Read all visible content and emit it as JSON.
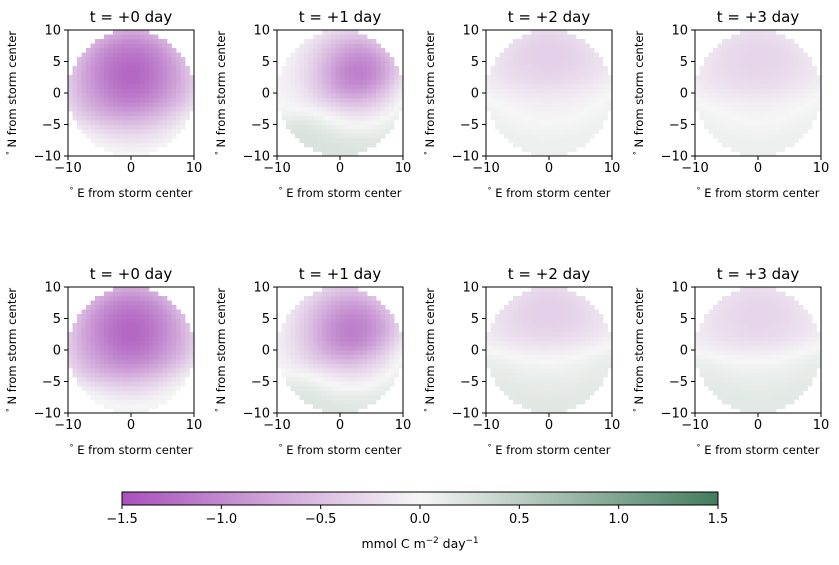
{
  "chart_data": [
    {
      "type": "heatmap",
      "title": "t = +0 day",
      "xlabel": "$^\\circ$ E from storm center",
      "ylabel": "$^\\circ$ N from storm center",
      "xlim": [
        -10,
        10
      ],
      "ylim": [
        -10,
        10
      ],
      "xticks": [
        "−10",
        "0",
        "10"
      ],
      "yticks": [
        "10",
        "5",
        "0",
        "−5",
        "−10"
      ],
      "field": {
        "center": [
          0,
          3
        ],
        "radius": 7,
        "peak": -1.3,
        "south_value": 0.25,
        "boundary_lat": -3.5,
        "tilt": 0.15
      }
    },
    {
      "type": "heatmap",
      "title": "t = +1 day",
      "xlabel": "$^\\circ$ E from storm center",
      "ylabel": "$^\\circ$ N from storm center",
      "xlim": [
        -10,
        10
      ],
      "ylim": [
        -10,
        10
      ],
      "xticks": [
        "−10",
        "0",
        "10"
      ],
      "yticks": [
        "10",
        "5",
        "0",
        "−5",
        "−10"
      ],
      "field": {
        "center": [
          3,
          3
        ],
        "radius": 5,
        "peak": -1.1,
        "south_value": 0.3,
        "boundary_lat": -1,
        "tilt": 0.35
      }
    },
    {
      "type": "heatmap",
      "title": "t = +2 day",
      "xlabel": "$^\\circ$ E from storm center",
      "ylabel": "$^\\circ$ N from storm center",
      "xlim": [
        -10,
        10
      ],
      "ylim": [
        -10,
        10
      ],
      "xticks": [
        "−10",
        "0",
        "10"
      ],
      "yticks": [
        "10",
        "5",
        "0",
        "−5",
        "−10"
      ],
      "field": {
        "center": [
          0,
          6
        ],
        "radius": 8,
        "peak": -0.35,
        "south_value": 0.15,
        "boundary_lat": 1,
        "tilt": 0.05
      }
    },
    {
      "type": "heatmap",
      "title": "t = +3 day",
      "xlabel": "$^\\circ$ E from storm center",
      "ylabel": "$^\\circ$ N from storm center",
      "xlim": [
        -10,
        10
      ],
      "ylim": [
        -10,
        10
      ],
      "xticks": [
        "−10",
        "0",
        "10"
      ],
      "yticks": [
        "10",
        "5",
        "0",
        "−5",
        "−10"
      ],
      "field": {
        "center": [
          0,
          5
        ],
        "radius": 8,
        "peak": -0.3,
        "south_value": 0.15,
        "boundary_lat": 0,
        "tilt": 0.05
      }
    },
    {
      "type": "heatmap",
      "title": "t = +0 day",
      "xlabel": "$^\\circ$ E from storm center",
      "ylabel": "$^\\circ$ N from storm center",
      "xlim": [
        -10,
        10
      ],
      "ylim": [
        -10,
        10
      ],
      "xticks": [
        "−10",
        "0",
        "10"
      ],
      "yticks": [
        "10",
        "5",
        "0",
        "−5",
        "−10"
      ],
      "field": {
        "center": [
          0,
          3
        ],
        "radius": 7,
        "peak": -1.3,
        "south_value": 0.3,
        "boundary_lat": -4,
        "tilt": 0.15
      }
    },
    {
      "type": "heatmap",
      "title": "t = +1 day",
      "xlabel": "$^\\circ$ E from storm center",
      "ylabel": "$^\\circ$ N from storm center",
      "xlim": [
        -10,
        10
      ],
      "ylim": [
        -10,
        10
      ],
      "xticks": [
        "−10",
        "0",
        "10"
      ],
      "yticks": [
        "10",
        "5",
        "0",
        "−5",
        "−10"
      ],
      "field": {
        "center": [
          2,
          3
        ],
        "radius": 5.5,
        "peak": -1.1,
        "south_value": 0.3,
        "boundary_lat": -1.5,
        "tilt": 0.35
      }
    },
    {
      "type": "heatmap",
      "title": "t = +2 day",
      "xlabel": "$^\\circ$ E from storm center",
      "ylabel": "$^\\circ$ N from storm center",
      "xlim": [
        -10,
        10
      ],
      "ylim": [
        -10,
        10
      ],
      "xticks": [
        "−10",
        "0",
        "10"
      ],
      "yticks": [
        "10",
        "5",
        "0",
        "−5",
        "−10"
      ],
      "field": {
        "center": [
          0,
          6
        ],
        "radius": 8,
        "peak": -0.35,
        "south_value": 0.25,
        "boundary_lat": 0.5,
        "tilt": 0.05
      }
    },
    {
      "type": "heatmap",
      "title": "t = +3 day",
      "xlabel": "$^\\circ$ E from storm center",
      "ylabel": "$^\\circ$ N from storm center",
      "xlim": [
        -10,
        10
      ],
      "ylim": [
        -10,
        10
      ],
      "xticks": [
        "−10",
        "0",
        "10"
      ],
      "yticks": [
        "10",
        "5",
        "0",
        "−5",
        "−10"
      ],
      "field": {
        "center": [
          0,
          5
        ],
        "radius": 8,
        "peak": -0.3,
        "south_value": 0.25,
        "boundary_lat": 0,
        "tilt": 0.05
      }
    }
  ],
  "colorbar": {
    "label": "mmol C m$^{-2}$ day$^{-1}$",
    "range": [
      -1.5,
      1.5
    ],
    "ticks": [
      "−1.5",
      "−1.0",
      "−0.5",
      "0.0",
      "0.5",
      "1.0",
      "1.5"
    ],
    "colors": {
      "negative": "#a851bb",
      "zero": "#f6f6f6",
      "positive": "#437c5d"
    }
  }
}
